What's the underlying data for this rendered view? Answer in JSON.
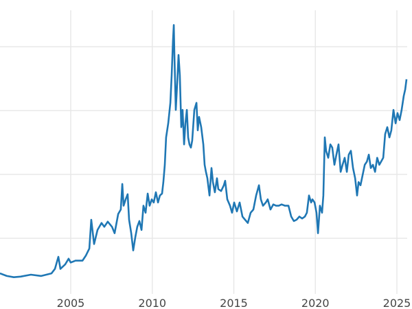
{
  "chart_data": {
    "type": "line",
    "title": "",
    "xlabel": "",
    "ylabel": "",
    "xlim": [
      2000.66,
      2025.6
    ],
    "ylim": [
      0,
      47
    ],
    "grid": true,
    "x_ticks": [
      "2005",
      "2010",
      "2015",
      "2020",
      "2025"
    ],
    "x_tick_values": [
      2005,
      2010,
      2015,
      2020,
      2025
    ],
    "y_grid_values": [
      10,
      20,
      30,
      40
    ],
    "line_color": "#1f77b4",
    "series": [
      {
        "x": [
          2000.66,
          2001.08,
          2001.51,
          2001.93,
          2002.56,
          2003.19,
          2003.82,
          2004.03,
          2004.24,
          2004.37,
          2004.66,
          2004.87,
          2005.0,
          2005.29,
          2005.72,
          2005.93,
          2006.14,
          2006.26,
          2006.43,
          2006.64,
          2006.89,
          2007.06,
          2007.27,
          2007.53,
          2007.69,
          2007.91,
          2008.07,
          2008.16,
          2008.24,
          2008.37,
          2008.49,
          2008.58,
          2008.71,
          2008.83,
          2008.96,
          2009.08,
          2009.21,
          2009.34,
          2009.46,
          2009.59,
          2009.72,
          2009.84,
          2009.97,
          2010.09,
          2010.22,
          2010.35,
          2010.47,
          2010.6,
          2010.68,
          2010.77,
          2010.85,
          2010.98,
          2011.11,
          2011.19,
          2011.27,
          2011.32,
          2011.36,
          2011.44,
          2011.53,
          2011.61,
          2011.69,
          2011.78,
          2011.86,
          2011.95,
          2012.03,
          2012.12,
          2012.2,
          2012.28,
          2012.37,
          2012.45,
          2012.58,
          2012.71,
          2012.79,
          2012.87,
          2013.0,
          2013.13,
          2013.21,
          2013.29,
          2013.38,
          2013.51,
          2013.63,
          2013.72,
          2013.84,
          2013.97,
          2014.05,
          2014.22,
          2014.39,
          2014.47,
          2014.6,
          2014.77,
          2014.89,
          2015.02,
          2015.19,
          2015.36,
          2015.53,
          2015.69,
          2015.86,
          2016.03,
          2016.2,
          2016.37,
          2016.54,
          2016.66,
          2016.79,
          2016.96,
          2017.08,
          2017.25,
          2017.42,
          2017.59,
          2017.76,
          2017.93,
          2018.14,
          2018.35,
          2018.52,
          2018.68,
          2018.85,
          2019.02,
          2019.19,
          2019.36,
          2019.48,
          2019.61,
          2019.74,
          2019.82,
          2019.95,
          2020.07,
          2020.16,
          2020.28,
          2020.41,
          2020.49,
          2020.58,
          2020.66,
          2020.79,
          2020.92,
          2021.04,
          2021.17,
          2021.29,
          2021.42,
          2021.55,
          2021.67,
          2021.8,
          2021.93,
          2022.05,
          2022.18,
          2022.31,
          2022.44,
          2022.56,
          2022.65,
          2022.77,
          2022.9,
          2023.03,
          2023.16,
          2023.28,
          2023.4,
          2023.53,
          2023.66,
          2023.79,
          2023.92,
          2024.03,
          2024.16,
          2024.28,
          2024.41,
          2024.54,
          2024.66,
          2024.79,
          2024.92,
          2025.04,
          2025.17,
          2025.29,
          2025.42,
          2025.51,
          2025.59
        ],
        "y": [
          4.5,
          4.1,
          3.9,
          4.0,
          4.3,
          4.1,
          4.5,
          5.2,
          7.1,
          5.2,
          5.9,
          6.8,
          6.2,
          6.5,
          6.5,
          7.3,
          8.4,
          12.9,
          9.1,
          11.3,
          12.4,
          11.8,
          12.6,
          11.8,
          10.8,
          13.8,
          14.5,
          18.5,
          15.1,
          16.1,
          16.9,
          12.9,
          10.8,
          8.1,
          10.2,
          11.8,
          12.7,
          11.3,
          15.1,
          14.0,
          17.0,
          15.1,
          16.1,
          15.6,
          17.2,
          15.6,
          16.7,
          17.0,
          18.8,
          21.5,
          25.8,
          28.0,
          31.2,
          35.5,
          40.9,
          43.4,
          38.7,
          30.1,
          34.4,
          38.7,
          35.5,
          27.4,
          30.1,
          24.7,
          28.0,
          30.1,
          25.8,
          24.7,
          24.2,
          25.3,
          30.1,
          31.2,
          26.9,
          29.0,
          27.4,
          24.7,
          21.5,
          20.4,
          19.4,
          16.7,
          21.0,
          18.8,
          17.2,
          19.4,
          17.7,
          17.4,
          18.3,
          19.0,
          16.1,
          15.1,
          14.0,
          15.6,
          14.2,
          15.6,
          13.4,
          12.9,
          12.4,
          14.0,
          14.5,
          16.7,
          18.3,
          16.1,
          15.1,
          15.6,
          16.1,
          14.5,
          15.3,
          15.1,
          15.1,
          15.3,
          15.1,
          15.1,
          13.4,
          12.7,
          12.9,
          13.4,
          13.1,
          13.4,
          14.0,
          16.7,
          15.6,
          16.1,
          15.6,
          14.0,
          10.8,
          15.1,
          14.0,
          16.7,
          25.8,
          23.7,
          22.6,
          24.7,
          24.2,
          21.5,
          23.1,
          24.7,
          20.4,
          21.5,
          22.6,
          20.4,
          23.1,
          23.7,
          21.0,
          19.4,
          16.7,
          18.8,
          18.3,
          19.9,
          21.5,
          22.0,
          23.1,
          21.0,
          21.5,
          20.4,
          22.6,
          21.5,
          22.0,
          22.6,
          26.3,
          27.4,
          25.8,
          26.9,
          30.1,
          28.0,
          29.6,
          28.5,
          30.1,
          32.3,
          33.3,
          34.9
        ]
      }
    ]
  }
}
